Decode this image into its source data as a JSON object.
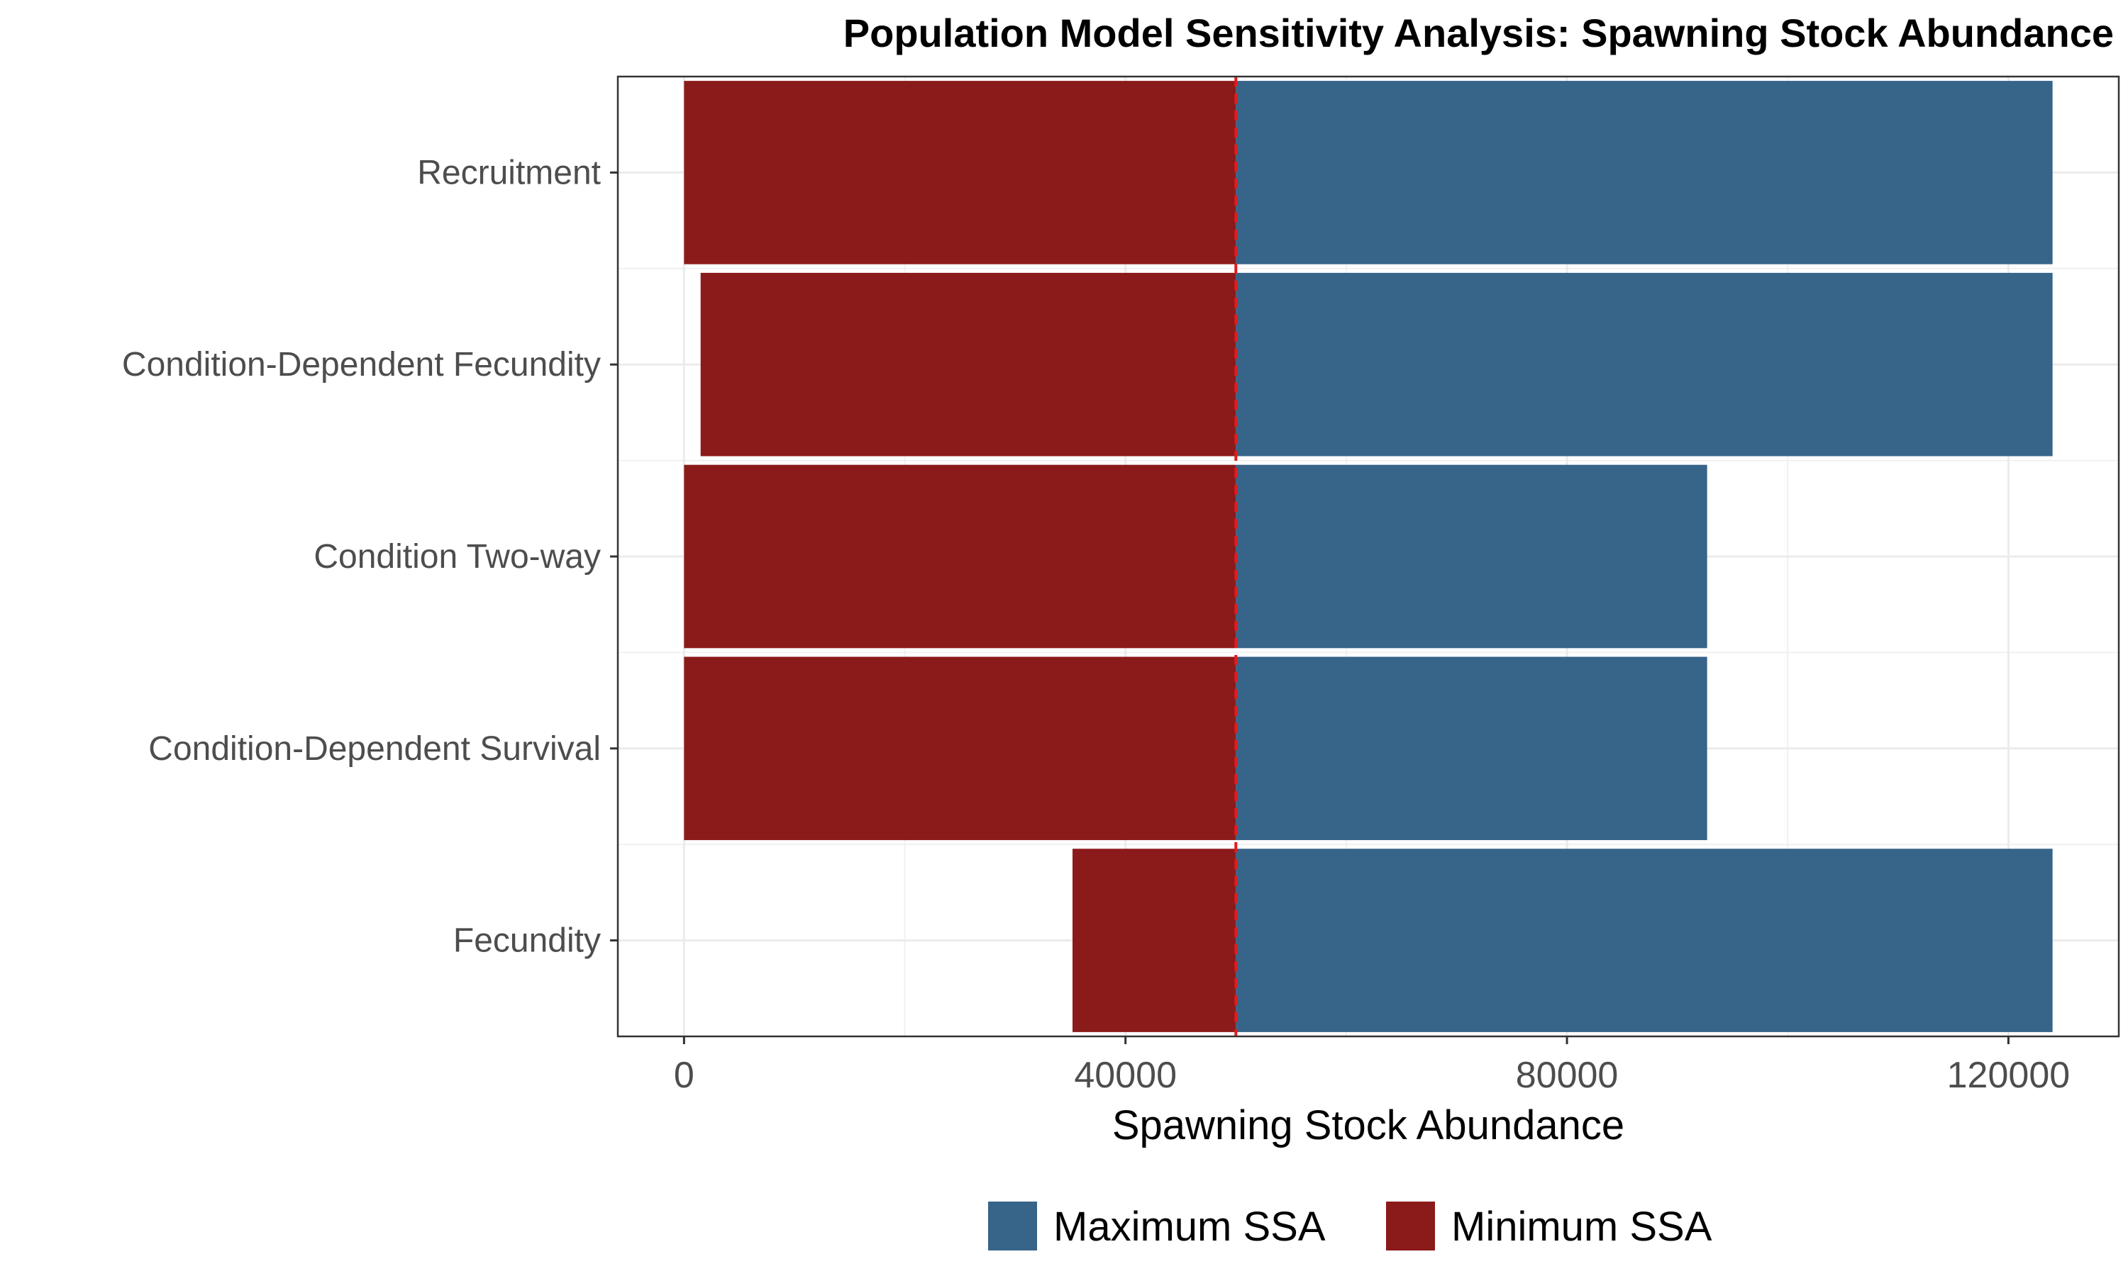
{
  "chart_data": {
    "type": "bar",
    "orientation": "horizontal",
    "title": "Population Model Sensitivity Analysis: Spawning Stock Abundance",
    "xlabel": "Spawning Stock Abundance",
    "ylabel": "",
    "xlim": [
      -6000,
      130000
    ],
    "xticks": [
      0,
      40000,
      80000,
      120000
    ],
    "xtick_labels": [
      "0",
      "40000",
      "80000",
      "120000"
    ],
    "baseline": 50000,
    "baseline_color": "#e41a1c",
    "baseline_style": "dashed",
    "grid": true,
    "legend_position": "bottom",
    "categories": [
      "Recruitment",
      "Condition-Dependent Fecundity",
      "Condition Two-way",
      "Condition-Dependent Survival",
      "Fecundity"
    ],
    "series": [
      {
        "name": "Maximum SSA",
        "color": "#376489",
        "values": [
          124000,
          124000,
          92700,
          92700,
          124000
        ]
      },
      {
        "name": "Minimum SSA",
        "color": "#8b1a1a",
        "values": [
          0,
          1500,
          0,
          0,
          35200
        ]
      }
    ]
  }
}
